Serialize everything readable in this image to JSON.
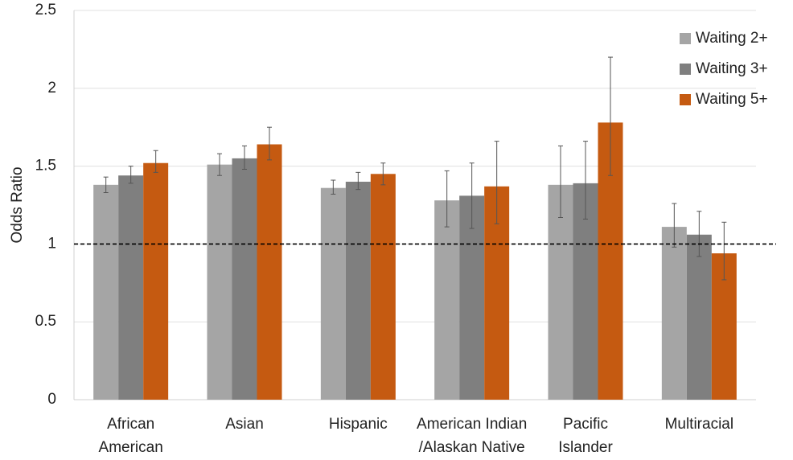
{
  "chart_data": {
    "type": "bar",
    "y_label": "Odds Ratio",
    "categories": [
      [
        "African",
        "American"
      ],
      [
        "Asian"
      ],
      [
        "Hispanic"
      ],
      [
        "American Indian",
        "/Alaskan Native"
      ],
      [
        "Pacific",
        "Islander"
      ],
      [
        "Multiracial"
      ]
    ],
    "series": [
      {
        "name": "Waiting 2+",
        "color": "#a5a5a5",
        "values": [
          1.38,
          1.51,
          1.36,
          1.28,
          1.38,
          1.11
        ],
        "ci_low": [
          1.33,
          1.44,
          1.32,
          1.11,
          1.17,
          0.98
        ],
        "ci_high": [
          1.43,
          1.58,
          1.41,
          1.47,
          1.63,
          1.26
        ]
      },
      {
        "name": "Waiting 3+",
        "color": "#7f7f7f",
        "values": [
          1.44,
          1.55,
          1.4,
          1.31,
          1.39,
          1.06
        ],
        "ci_low": [
          1.39,
          1.48,
          1.35,
          1.1,
          1.16,
          0.92
        ],
        "ci_high": [
          1.5,
          1.63,
          1.46,
          1.52,
          1.66,
          1.21
        ]
      },
      {
        "name": "Waiting 5+",
        "color": "#c55a11",
        "values": [
          1.52,
          1.64,
          1.45,
          1.37,
          1.78,
          0.94
        ],
        "ci_low": [
          1.46,
          1.54,
          1.38,
          1.13,
          1.44,
          0.77
        ],
        "ci_high": [
          1.6,
          1.75,
          1.52,
          1.66,
          2.2,
          1.14
        ]
      }
    ],
    "ylim": [
      0,
      2.5
    ],
    "yticks": [
      0,
      0.5,
      1,
      1.5,
      2,
      2.5
    ],
    "grid": true,
    "reference_line": 1,
    "legend": "top-right"
  }
}
